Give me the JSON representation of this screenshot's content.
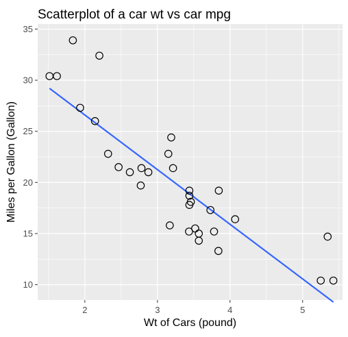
{
  "chart_data": {
    "type": "scatter",
    "title": "Scatterplot of a car wt vs car mpg",
    "xlabel": "Wt of Cars (pound)",
    "ylabel": "Miles per Gallon (Gallon)",
    "xlim": [
      1.35,
      5.55
    ],
    "ylim": [
      8.5,
      35.5
    ],
    "xticks": [
      2,
      3,
      4,
      5
    ],
    "yticks": [
      10,
      15,
      20,
      25,
      30,
      35
    ],
    "grid": true,
    "legend": "none",
    "points": [
      {
        "x": 2.62,
        "y": 21.0
      },
      {
        "x": 2.875,
        "y": 21.0
      },
      {
        "x": 2.32,
        "y": 22.8
      },
      {
        "x": 3.215,
        "y": 21.4
      },
      {
        "x": 3.44,
        "y": 18.7
      },
      {
        "x": 3.46,
        "y": 18.1
      },
      {
        "x": 3.57,
        "y": 14.3
      },
      {
        "x": 3.19,
        "y": 24.4
      },
      {
        "x": 3.15,
        "y": 22.8
      },
      {
        "x": 3.44,
        "y": 19.2
      },
      {
        "x": 3.44,
        "y": 17.8
      },
      {
        "x": 4.07,
        "y": 16.4
      },
      {
        "x": 3.73,
        "y": 17.3
      },
      {
        "x": 3.78,
        "y": 15.2
      },
      {
        "x": 5.25,
        "y": 10.4
      },
      {
        "x": 5.424,
        "y": 10.4
      },
      {
        "x": 5.345,
        "y": 14.7
      },
      {
        "x": 2.2,
        "y": 32.4
      },
      {
        "x": 1.615,
        "y": 30.4
      },
      {
        "x": 1.835,
        "y": 33.9
      },
      {
        "x": 2.465,
        "y": 21.5
      },
      {
        "x": 3.52,
        "y": 15.5
      },
      {
        "x": 3.435,
        "y": 15.2
      },
      {
        "x": 3.84,
        "y": 13.3
      },
      {
        "x": 3.845,
        "y": 19.2
      },
      {
        "x": 1.935,
        "y": 27.3
      },
      {
        "x": 2.14,
        "y": 26.0
      },
      {
        "x": 1.513,
        "y": 30.4
      },
      {
        "x": 3.17,
        "y": 15.8
      },
      {
        "x": 2.77,
        "y": 19.7
      },
      {
        "x": 3.57,
        "y": 15.0
      },
      {
        "x": 2.78,
        "y": 21.4
      }
    ],
    "fit_line": {
      "type": "linear",
      "x": [
        1.513,
        5.424
      ],
      "y": [
        29.2,
        8.3
      ]
    },
    "colors": {
      "panel_background": "#ebebeb",
      "grid": "#ffffff",
      "point_stroke": "#000000",
      "fit_line": "#3366ff"
    }
  }
}
